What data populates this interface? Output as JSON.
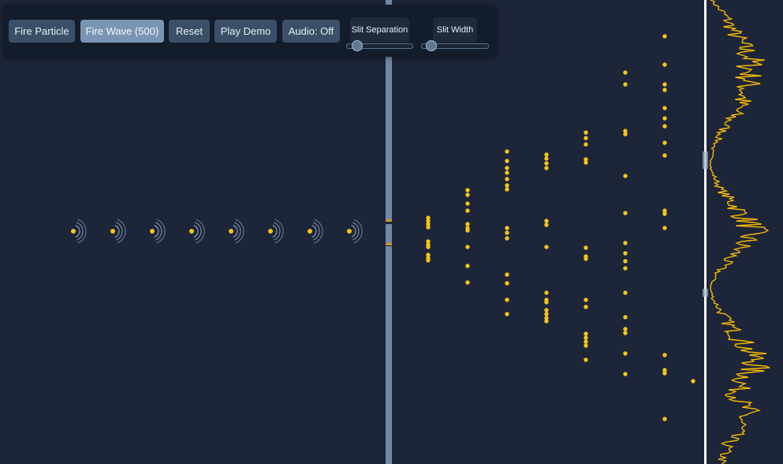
{
  "toolbar": {
    "buttons": [
      {
        "label": "Fire Particle",
        "active": false
      },
      {
        "label": "Fire Wave (500)",
        "active": true
      },
      {
        "label": "Reset",
        "active": false
      },
      {
        "label": "Play Demo",
        "active": false
      },
      {
        "label": "Audio: Off",
        "active": false
      }
    ],
    "sliders": [
      {
        "label": "Slit Separation",
        "value": 0.1
      },
      {
        "label": "Slit Width",
        "value": 0.08
      }
    ]
  },
  "colors": {
    "background": "#1d2539",
    "barrier": "#7089a8",
    "particle": "#f5c518",
    "wave_ring": "#a6bbd2",
    "histogram": "#f5b800",
    "screen": "#ffffff"
  }
}
